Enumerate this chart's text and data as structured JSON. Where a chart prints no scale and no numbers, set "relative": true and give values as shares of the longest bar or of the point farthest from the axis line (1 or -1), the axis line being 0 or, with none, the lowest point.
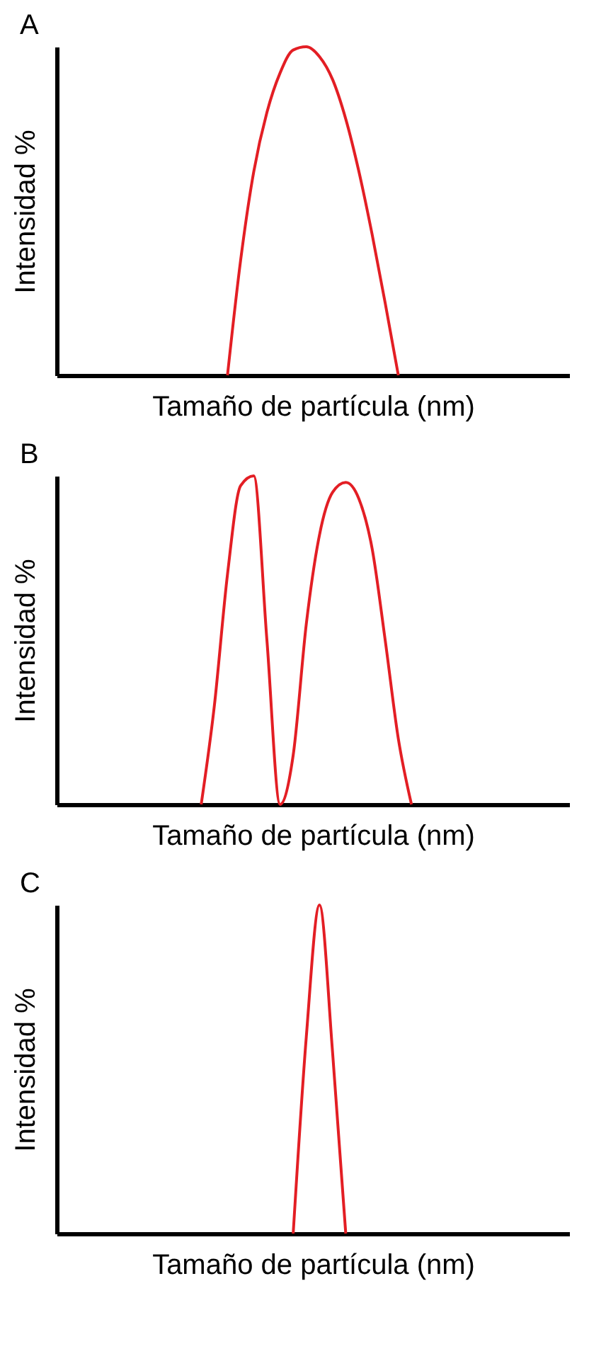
{
  "chart_data": [
    {
      "type": "line",
      "title": "A",
      "xlabel": "Tamaño de partícula (nm)",
      "ylabel": "Intensidad %",
      "relative": true,
      "tick_labels": false,
      "categories": [
        null,
        null,
        null,
        null,
        null,
        null,
        null,
        null,
        null,
        null,
        null,
        null,
        null,
        null,
        null,
        null,
        null,
        null,
        null,
        null,
        null,
        null,
        null,
        null,
        null,
        null,
        null,
        null,
        null,
        null,
        null,
        null,
        null,
        null,
        null,
        null,
        null,
        null,
        null,
        null
      ],
      "series": [
        {
          "color": "#e31e24",
          "values": [
            null,
            null,
            null,
            null,
            null,
            null,
            null,
            null,
            null,
            null,
            null,
            null,
            null,
            0,
            0.35,
            0.62,
            0.8,
            0.92,
            0.99,
            1,
            0.97,
            0.9,
            0.78,
            0.62,
            0.43,
            0.22,
            0,
            null,
            null,
            null,
            null,
            null,
            null,
            null,
            null,
            null,
            null,
            null,
            null,
            null
          ]
        }
      ]
    },
    {
      "type": "line",
      "title": "B",
      "xlabel": "Tamaño de partícula (nm)",
      "ylabel": "Intensidad %",
      "relative": true,
      "tick_labels": false,
      "categories": [
        null,
        null,
        null,
        null,
        null,
        null,
        null,
        null,
        null,
        null,
        null,
        null,
        null,
        null,
        null,
        null,
        null,
        null,
        null,
        null,
        null,
        null,
        null,
        null,
        null,
        null,
        null,
        null,
        null,
        null,
        null,
        null,
        null,
        null,
        null,
        null,
        null,
        null,
        null,
        null
      ],
      "series": [
        {
          "color": "#e31e24",
          "values": [
            null,
            null,
            null,
            null,
            null,
            null,
            null,
            null,
            null,
            null,
            null,
            0,
            0.3,
            0.7,
            0.97,
            1,
            0.5,
            0,
            0.15,
            0.55,
            0.82,
            0.95,
            0.98,
            0.93,
            0.78,
            0.5,
            0.2,
            0,
            null,
            null,
            null,
            null,
            null,
            null,
            null,
            null,
            null,
            null,
            null,
            null
          ]
        }
      ]
    },
    {
      "type": "line",
      "title": "C",
      "xlabel": "Tamaño de partícula (nm)",
      "ylabel": "Intensidad %",
      "relative": true,
      "tick_labels": false,
      "categories": [
        null,
        null,
        null,
        null,
        null,
        null,
        null,
        null,
        null,
        null,
        null,
        null,
        null,
        null,
        null,
        null,
        null,
        null,
        null,
        null,
        null,
        null,
        null,
        null,
        null,
        null,
        null,
        null,
        null,
        null,
        null,
        null,
        null,
        null,
        null,
        null,
        null,
        null,
        null,
        null
      ],
      "series": [
        {
          "color": "#e31e24",
          "values": [
            null,
            null,
            null,
            null,
            null,
            null,
            null,
            null,
            null,
            null,
            null,
            null,
            null,
            null,
            null,
            null,
            null,
            null,
            0,
            0.6,
            1,
            0.55,
            0,
            null,
            null,
            null,
            null,
            null,
            null,
            null,
            null,
            null,
            null,
            null,
            null,
            null,
            null,
            null,
            null,
            null
          ]
        }
      ]
    }
  ]
}
